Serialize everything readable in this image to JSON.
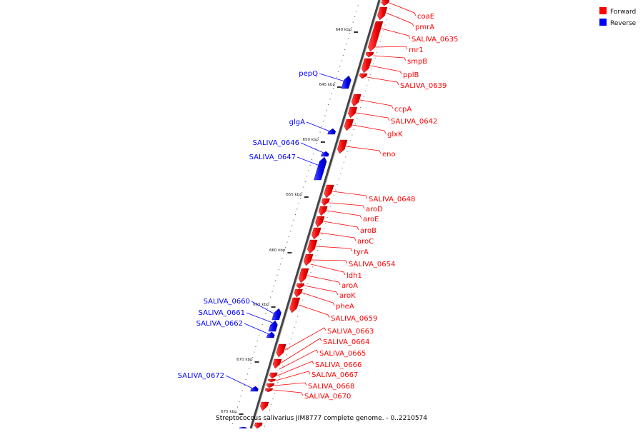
{
  "legend": {
    "items": [
      {
        "label": "Forward",
        "color": "#ff0000"
      },
      {
        "label": "Reverse",
        "color": "#0000ff"
      }
    ]
  },
  "caption": "Streptococcus salivarius JIM8777 complete genome. - 0..2210574",
  "colors": {
    "forward": "#ff0000",
    "reverse": "#0000ff",
    "backbone": "#888888"
  },
  "ticks": [
    "640 kbp",
    "645 kbp",
    "650 kbp",
    "655 kbp",
    "660 kbp",
    "665 kbp",
    "670 kbp",
    "675 kbp"
  ],
  "forward_genes": [
    "coaE",
    "pmrA",
    "SALIVA_0635",
    "rnr1",
    "smpB",
    "pplB",
    "SALIVA_0639",
    "ccpA",
    "SALIVA_0642",
    "glxK",
    "eno",
    "SALIVA_0648",
    "aroD",
    "aroE",
    "aroB",
    "aroC",
    "tyrA",
    "SALIVA_0654",
    "ldh1",
    "aroA",
    "aroK",
    "pheA",
    "SALIVA_0659",
    "SALIVA_0663",
    "SALIVA_0664",
    "SALIVA_0665",
    "SALIVA_0666",
    "SALIVA_0667",
    "SALIVA_0668",
    "SALIVA_0670"
  ],
  "reverse_genes": [
    "pepQ",
    "glgA",
    "SALIVA_0646",
    "SALIVA_0647",
    "SALIVA_0660",
    "SALIVA_0661",
    "SALIVA_0662",
    "SALIVA_0672"
  ]
}
